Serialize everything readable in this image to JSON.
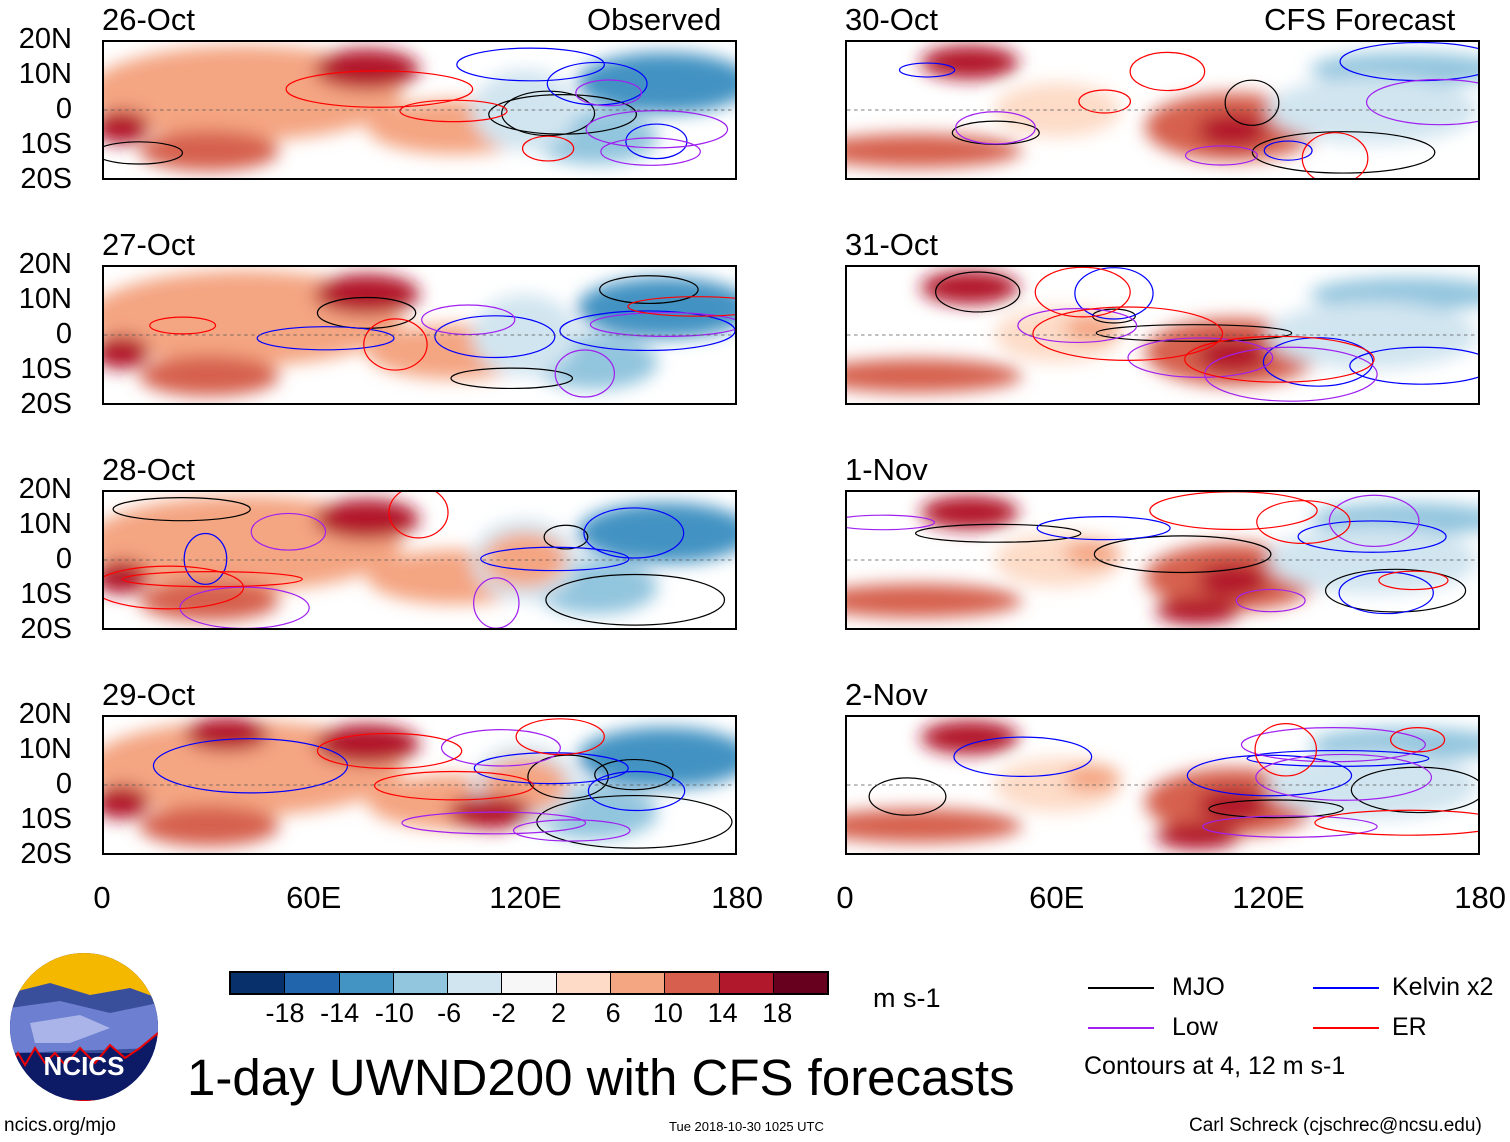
{
  "title": "1-day UWND200 with CFS forecasts",
  "observed_label": "Observed",
  "forecast_label": "CFS Forecast",
  "panels_left": [
    "26-Oct",
    "27-Oct",
    "28-Oct",
    "29-Oct"
  ],
  "panels_right": [
    "30-Oct",
    "31-Oct",
    "1-Nov",
    "2-Nov"
  ],
  "lat_labels": [
    "20N",
    "10N",
    "0",
    "10S",
    "20S"
  ],
  "lon_labels": [
    "0",
    "60E",
    "120E",
    "180"
  ],
  "colorbar": {
    "colors": [
      "#08306b",
      "#2166ac",
      "#4393c3",
      "#92c5de",
      "#d1e5f0",
      "#f7f7f7",
      "#fddbc7",
      "#f4a582",
      "#d6604d",
      "#b2182b",
      "#67001f"
    ],
    "labels": [
      "-18",
      "-14",
      "-10",
      "-6",
      "-2",
      "2",
      "6",
      "10",
      "14",
      "18"
    ],
    "units": "m s-1"
  },
  "legend": {
    "items": [
      {
        "label": "MJO",
        "color": "#000000"
      },
      {
        "label": "Kelvin x2",
        "color": "#0000ff"
      },
      {
        "label": "Low",
        "color": "#a020f0"
      },
      {
        "label": "ER",
        "color": "#ff0000"
      }
    ],
    "note": "Contours at 4, 12 m s-1"
  },
  "logo_text": "NCICS",
  "footer": {
    "url": "ncics.org/mjo",
    "timestamp": "Tue 2018-10-30 1025 UTC",
    "author": "Carl Schreck (cjschrec@ncsu.edu)"
  }
}
